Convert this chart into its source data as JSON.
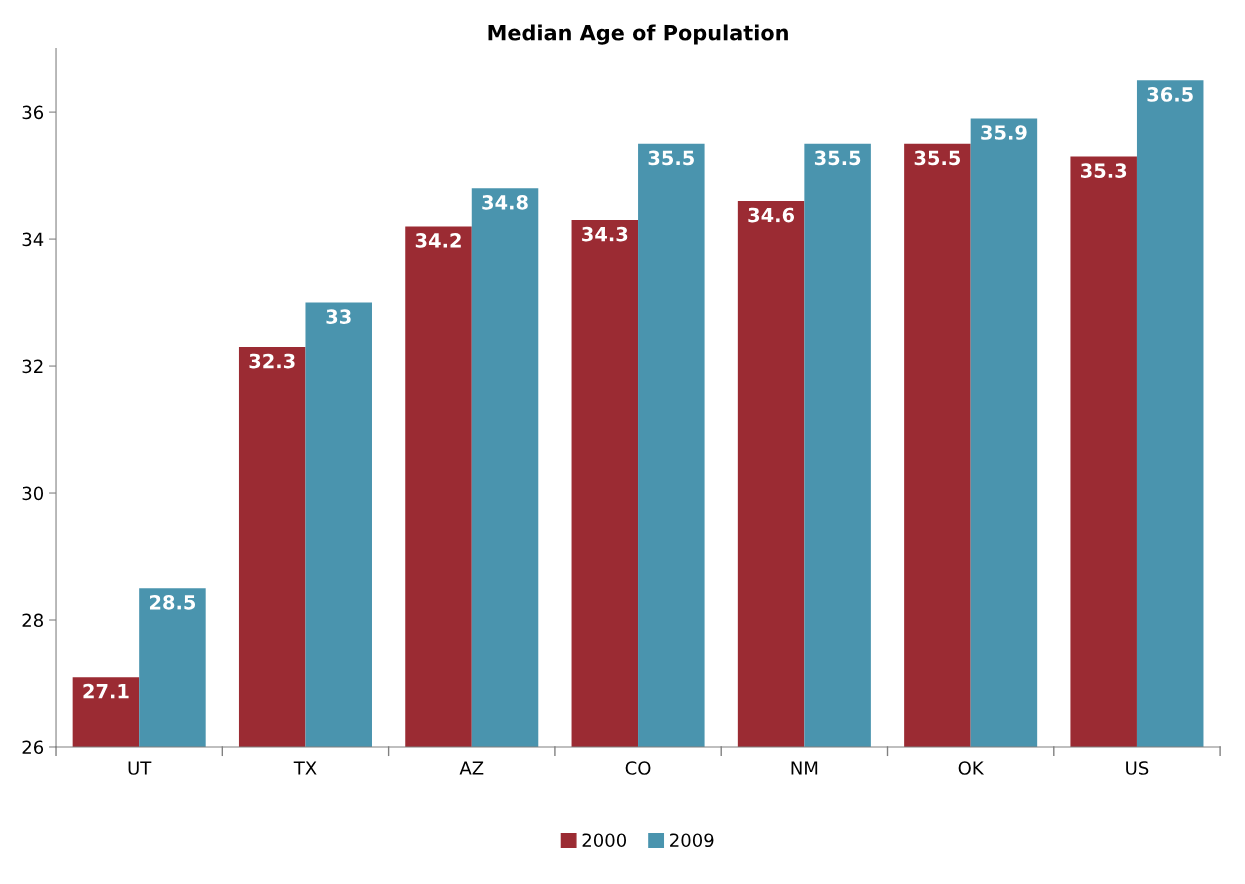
{
  "chart_data": {
    "type": "bar",
    "title": "Median Age of Population",
    "categories": [
      "UT",
      "TX",
      "AZ",
      "CO",
      "NM",
      "OK",
      "US"
    ],
    "series": [
      {
        "name": "2000",
        "color": "#9b2b33",
        "values": [
          27.1,
          32.3,
          34.2,
          34.3,
          34.6,
          35.5,
          35.3
        ]
      },
      {
        "name": "2009",
        "color": "#4a94ae",
        "values": [
          28.5,
          33,
          34.8,
          35.5,
          35.5,
          35.9,
          36.5
        ]
      }
    ],
    "ylim": [
      26,
      37
    ],
    "yticks": [
      26,
      28,
      30,
      32,
      34,
      36
    ],
    "grid": false,
    "legend": "bottom",
    "data_labels": true
  }
}
